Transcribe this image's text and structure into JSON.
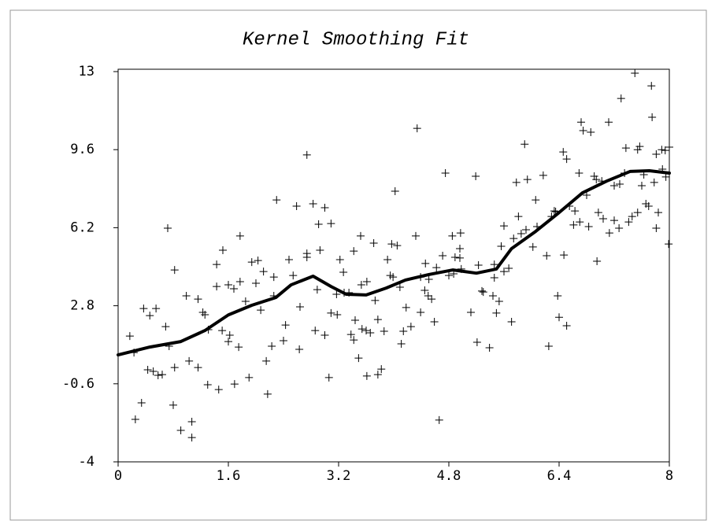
{
  "chart_data": {
    "type": "scatter",
    "title": "Kernel Smoothing Fit",
    "xlim": [
      0,
      8
    ],
    "ylim": [
      -4,
      13
    ],
    "xticks": [
      0,
      1.6,
      3.2,
      4.8,
      6.4,
      8
    ],
    "yticks": [
      -4,
      -0.6,
      2.8,
      6.2,
      9.6,
      13
    ],
    "grid": false,
    "points": {
      "color": "#000000",
      "x": [
        0.25,
        0.34,
        0.37,
        0.23,
        0.17,
        0.46,
        0.55,
        0.43,
        0.51,
        0.58,
        0.64,
        0.69,
        0.72,
        0.74,
        0.82,
        0.82,
        0.8,
        0.91,
        0.99,
        1.03,
        1.07,
        1.07,
        1.16,
        1.16,
        1.23,
        1.26,
        1.31,
        1.3,
        1.43,
        1.43,
        1.46,
        1.51,
        1.52,
        1.6,
        1.6,
        1.62,
        1.68,
        1.69,
        1.75,
        1.77,
        1.77,
        1.85,
        1.9,
        1.94,
        2.0,
        2.03,
        2.07,
        2.11,
        2.15,
        2.17,
        2.23,
        2.26,
        2.26,
        2.3,
        2.4,
        2.43,
        2.48,
        2.54,
        2.59,
        2.63,
        2.64,
        2.74,
        2.74,
        2.74,
        2.83,
        2.86,
        2.89,
        2.91,
        2.93,
        3.0,
        3.0,
        3.06,
        3.09,
        3.09,
        3.17,
        3.18,
        3.22,
        3.27,
        3.28,
        3.35,
        3.38,
        3.42,
        3.42,
        3.44,
        3.49,
        3.52,
        3.53,
        3.54,
        3.6,
        3.61,
        3.61,
        3.66,
        3.71,
        3.73,
        3.77,
        3.77,
        3.82,
        3.86,
        3.91,
        3.95,
        3.97,
        3.99,
        4.02,
        4.05,
        4.09,
        4.11,
        4.14,
        4.18,
        4.25,
        4.32,
        4.34,
        4.39,
        4.39,
        4.45,
        4.46,
        4.5,
        4.51,
        4.55,
        4.59,
        4.62,
        4.66,
        4.71,
        4.75,
        4.8,
        4.85,
        4.87,
        4.89,
        4.96,
        4.96,
        4.97,
        4.98,
        5.12,
        5.19,
        5.21,
        5.23,
        5.28,
        5.3,
        5.39,
        5.44,
        5.46,
        5.46,
        5.49,
        5.53,
        5.56,
        5.6,
        5.6,
        5.67,
        5.71,
        5.74,
        5.78,
        5.81,
        5.85,
        5.9,
        5.92,
        5.94,
        6.02,
        6.06,
        6.08,
        6.17,
        6.22,
        6.25,
        6.29,
        6.33,
        6.35,
        6.38,
        6.4,
        6.46,
        6.47,
        6.51,
        6.51,
        6.55,
        6.61,
        6.63,
        6.69,
        6.7,
        6.72,
        6.75,
        6.8,
        6.83,
        6.86,
        6.91,
        6.94,
        6.95,
        6.97,
        7.02,
        7.04,
        7.12,
        7.13,
        7.2,
        7.2,
        7.27,
        7.28,
        7.3,
        7.35,
        7.37,
        7.41,
        7.46,
        7.5,
        7.54,
        7.54,
        7.57,
        7.6,
        7.63,
        7.66,
        7.7,
        7.74,
        7.75,
        7.78,
        7.81,
        7.81,
        7.84,
        7.89,
        7.9,
        7.94,
        7.95,
        8.0,
        7.99
      ],
      "y": [
        -2.15,
        -1.43,
        2.68,
        0.76,
        1.48,
        2.37,
        2.68,
        0.01,
        -0.06,
        -0.23,
        -0.2,
        1.89,
        6.18,
        1.04,
        0.11,
        4.36,
        -1.53,
        -2.63,
        3.23,
        0.39,
        -2.25,
        -2.94,
        0.11,
        3.09,
        2.51,
        2.41,
        1.76,
        -0.64,
        3.64,
        4.6,
        -0.85,
        1.72,
        5.22,
        3.71,
        1.24,
        1.52,
        3.54,
        -0.61,
        1.0,
        5.84,
        3.85,
        2.99,
        -0.33,
        4.7,
        3.78,
        4.77,
        2.61,
        4.29,
        0.39,
        -1.05,
        1.04,
        3.23,
        4.05,
        7.41,
        1.28,
        1.96,
        4.81,
        4.12,
        7.14,
        0.9,
        2.75,
        4.91,
        5.08,
        9.37,
        7.24,
        1.72,
        3.5,
        6.35,
        5.22,
        7.07,
        1.52,
        -0.33,
        6.38,
        2.48,
        3.3,
        2.41,
        4.81,
        4.26,
        3.37,
        3.37,
        1.55,
        1.31,
        5.18,
        2.17,
        0.52,
        5.84,
        3.71,
        1.79,
        1.72,
        3.85,
        -0.26,
        1.62,
        5.53,
        3.03,
        2.2,
        -0.2,
        0.04,
        1.69,
        4.81,
        4.12,
        5.49,
        4.05,
        7.79,
        5.42,
        3.61,
        1.14,
        1.69,
        2.72,
        1.89,
        5.84,
        10.53,
        4.05,
        2.51,
        3.47,
        4.64,
        3.23,
        3.95,
        3.09,
        2.1,
        4.46,
        -2.18,
        4.98,
        8.58,
        4.12,
        5.84,
        4.19,
        4.91,
        4.88,
        5.29,
        5.97,
        4.4,
        2.51,
        8.44,
        1.21,
        4.57,
        3.44,
        3.4,
        0.97,
        3.23,
        4.6,
        4.02,
        2.48,
        2.99,
        5.39,
        4.29,
        6.28,
        4.43,
        2.1,
        5.73,
        8.17,
        6.69,
        5.94,
        9.84,
        6.11,
        8.3,
        5.36,
        7.41,
        6.25,
        8.48,
        4.98,
        1.04,
        6.69,
        6.93,
        6.9,
        3.23,
        2.3,
        9.5,
        5.01,
        1.93,
        9.19,
        7.14,
        6.32,
        6.93,
        8.58,
        6.45,
        10.8,
        10.43,
        7.62,
        6.25,
        10.36,
        8.44,
        8.3,
        4.74,
        6.86,
        8.23,
        6.59,
        10.8,
        5.97,
        8.03,
        6.52,
        6.18,
        8.1,
        11.83,
        8.58,
        9.67,
        6.45,
        6.69,
        12.93,
        9.6,
        6.86,
        9.74,
        8.03,
        8.51,
        7.24,
        7.14,
        12.38,
        11.01,
        8.17,
        9.4,
        6.18,
        6.86,
        9.6,
        8.75,
        9.57,
        8.41,
        9.71,
        5.49
      ]
    },
    "curve": {
      "color": "#000000",
      "x": [
        0,
        0.46,
        0.91,
        1.26,
        1.6,
        1.94,
        2.29,
        2.51,
        2.83,
        3.09,
        3.31,
        3.6,
        3.89,
        4.17,
        4.51,
        4.86,
        5.2,
        5.49,
        5.71,
        6.06,
        6.4,
        6.74,
        7.09,
        7.43,
        7.71,
        8
      ],
      "y": [
        0.66,
        1.0,
        1.24,
        1.72,
        2.4,
        2.82,
        3.16,
        3.71,
        4.09,
        3.64,
        3.3,
        3.27,
        3.57,
        3.92,
        4.16,
        4.36,
        4.22,
        4.4,
        5.29,
        6.04,
        6.86,
        7.72,
        8.23,
        8.65,
        8.68,
        8.58
      ]
    }
  }
}
